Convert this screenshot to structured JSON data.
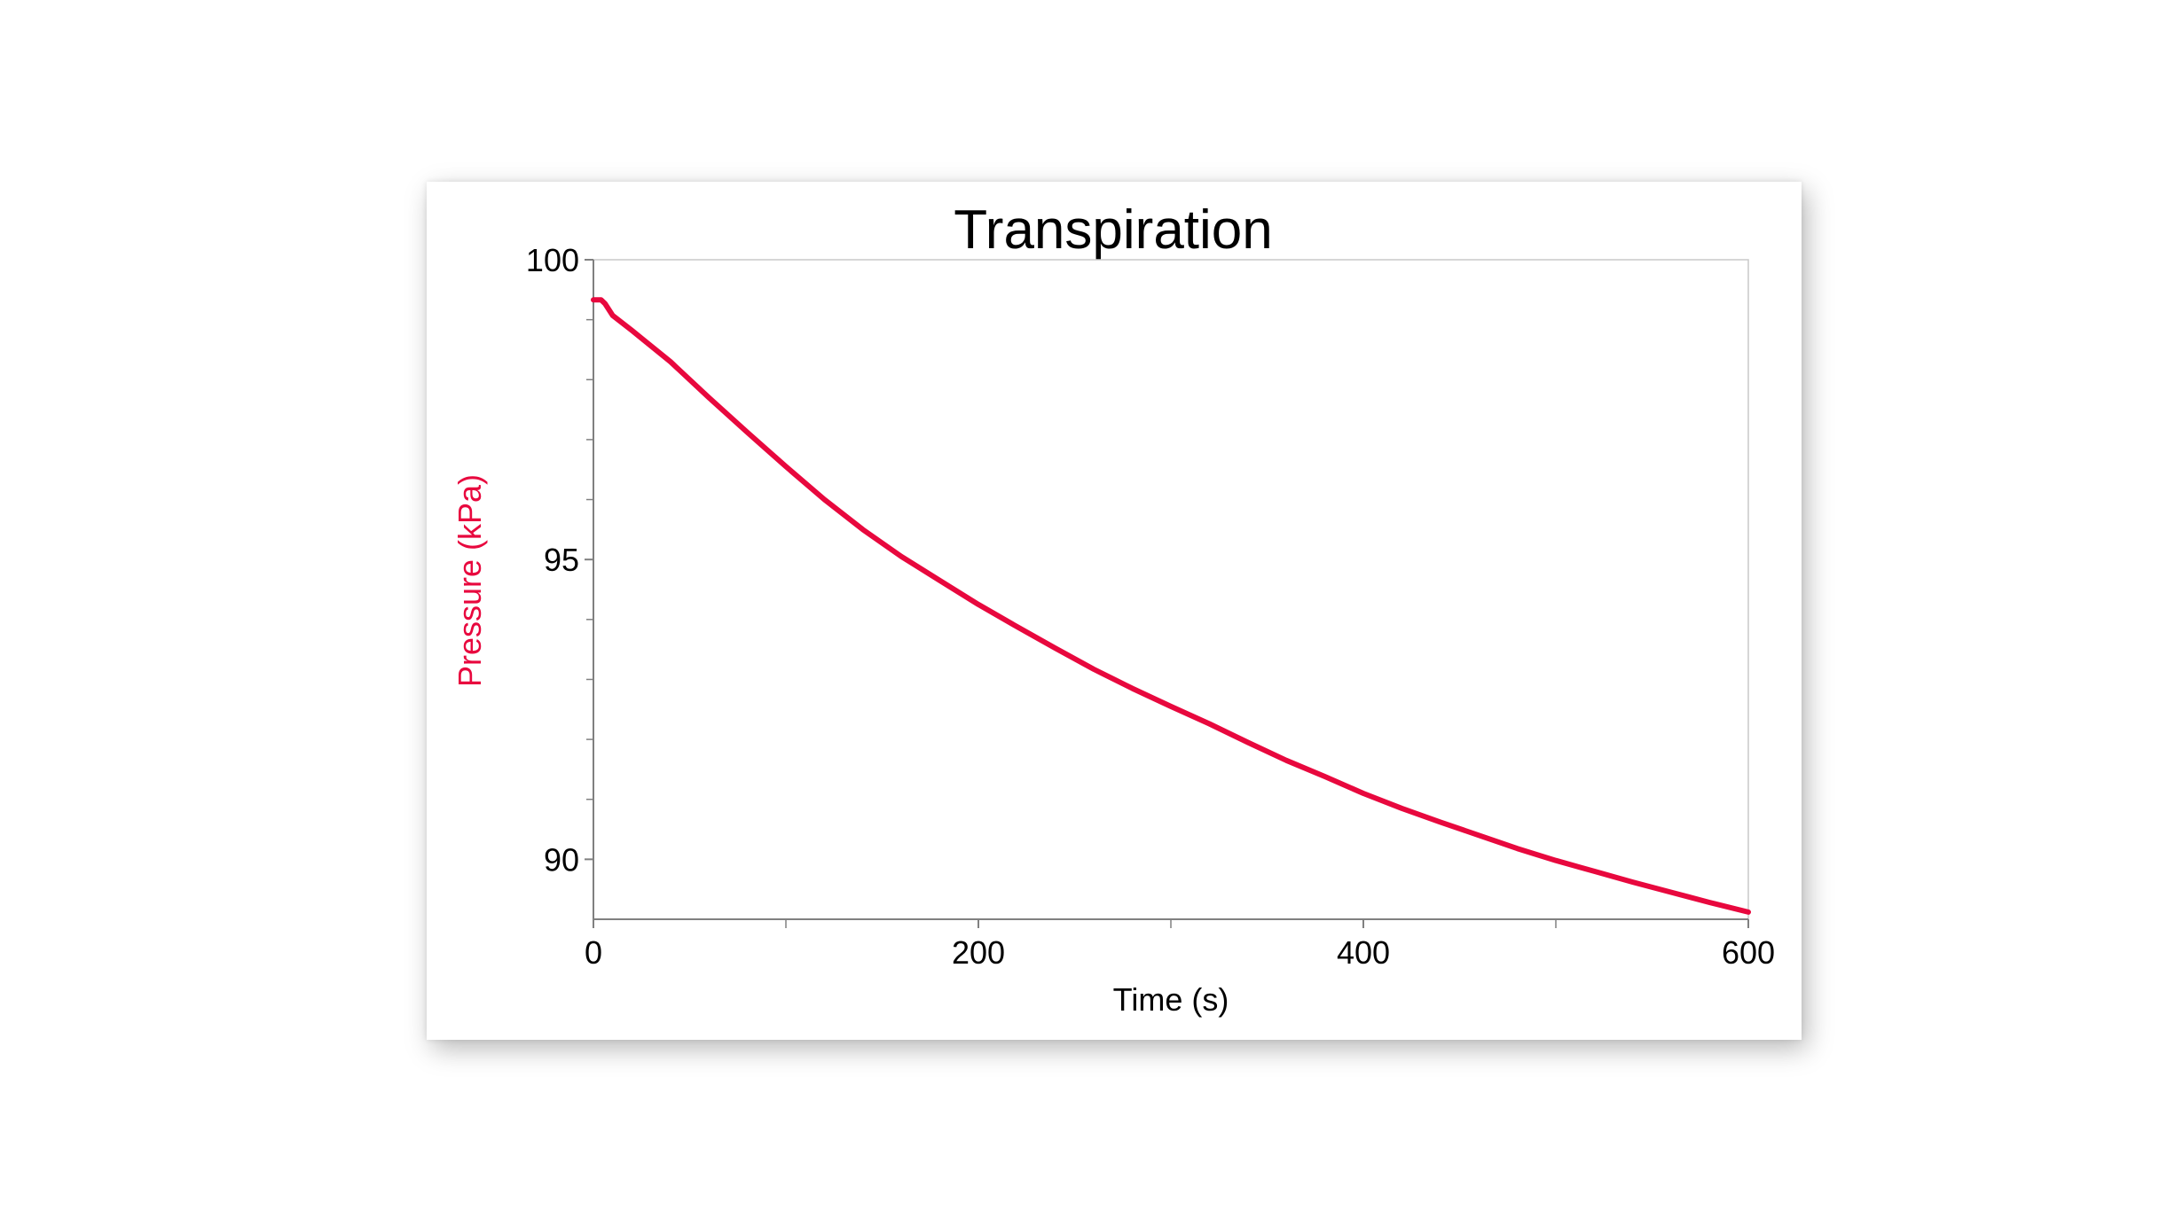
{
  "chart_data": {
    "type": "line",
    "title": "Transpiration",
    "xlabel": "Time (s)",
    "ylabel": "Pressure (kPa)",
    "xlim": [
      0,
      600
    ],
    "ylim": [
      89,
      100
    ],
    "x_ticks": [
      0,
      200,
      400,
      600
    ],
    "x_ticks_labels": [
      "0",
      "200",
      "400",
      "600"
    ],
    "x_minor_ticks": [
      100,
      300,
      500
    ],
    "y_ticks": [
      90,
      95,
      100
    ],
    "y_ticks_labels": [
      "90",
      "95",
      "100"
    ],
    "y_minor_ticks": [
      91,
      92,
      93,
      94,
      96,
      97,
      98,
      99
    ],
    "grid": false,
    "series": [
      {
        "color": "#e8083e",
        "x": [
          0,
          4,
          6,
          10,
          20,
          40,
          60,
          80,
          100,
          120,
          140,
          160,
          180,
          200,
          220,
          240,
          260,
          280,
          300,
          320,
          340,
          360,
          380,
          400,
          420,
          440,
          460,
          480,
          500,
          520,
          540,
          560,
          580,
          600
        ],
        "y": [
          99.33,
          99.33,
          99.27,
          99.07,
          98.82,
          98.3,
          97.7,
          97.12,
          96.55,
          96.0,
          95.5,
          95.05,
          94.65,
          94.25,
          93.88,
          93.52,
          93.17,
          92.85,
          92.55,
          92.26,
          91.95,
          91.65,
          91.38,
          91.1,
          90.85,
          90.62,
          90.4,
          90.18,
          89.98,
          89.8,
          89.62,
          89.45,
          89.28,
          89.12
        ]
      }
    ]
  }
}
